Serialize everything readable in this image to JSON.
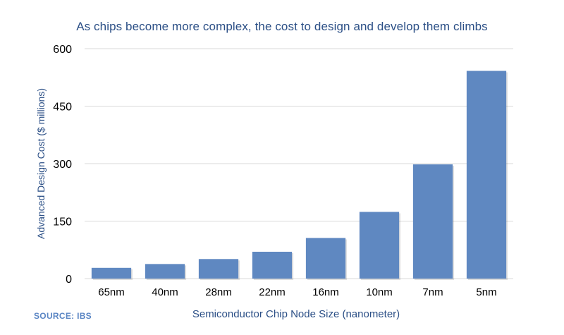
{
  "chart_data": {
    "type": "bar",
    "title": "As chips become more complex, the cost to design and develop them climbs",
    "xlabel": "Semiconductor Chip Node Size (nanometer)",
    "ylabel": "Advanced Design Cost ($ millions)",
    "categories": [
      "65nm",
      "40nm",
      "28nm",
      "22nm",
      "16nm",
      "10nm",
      "7nm",
      "5nm"
    ],
    "values": [
      28,
      38,
      51,
      70,
      106,
      174,
      298,
      542
    ],
    "ylim": [
      0,
      600
    ],
    "yticks": [
      "0",
      "150",
      "300",
      "450",
      "600"
    ],
    "bar_color": "#5f88c1",
    "grid": true
  },
  "source": "SOURCE: IBS"
}
